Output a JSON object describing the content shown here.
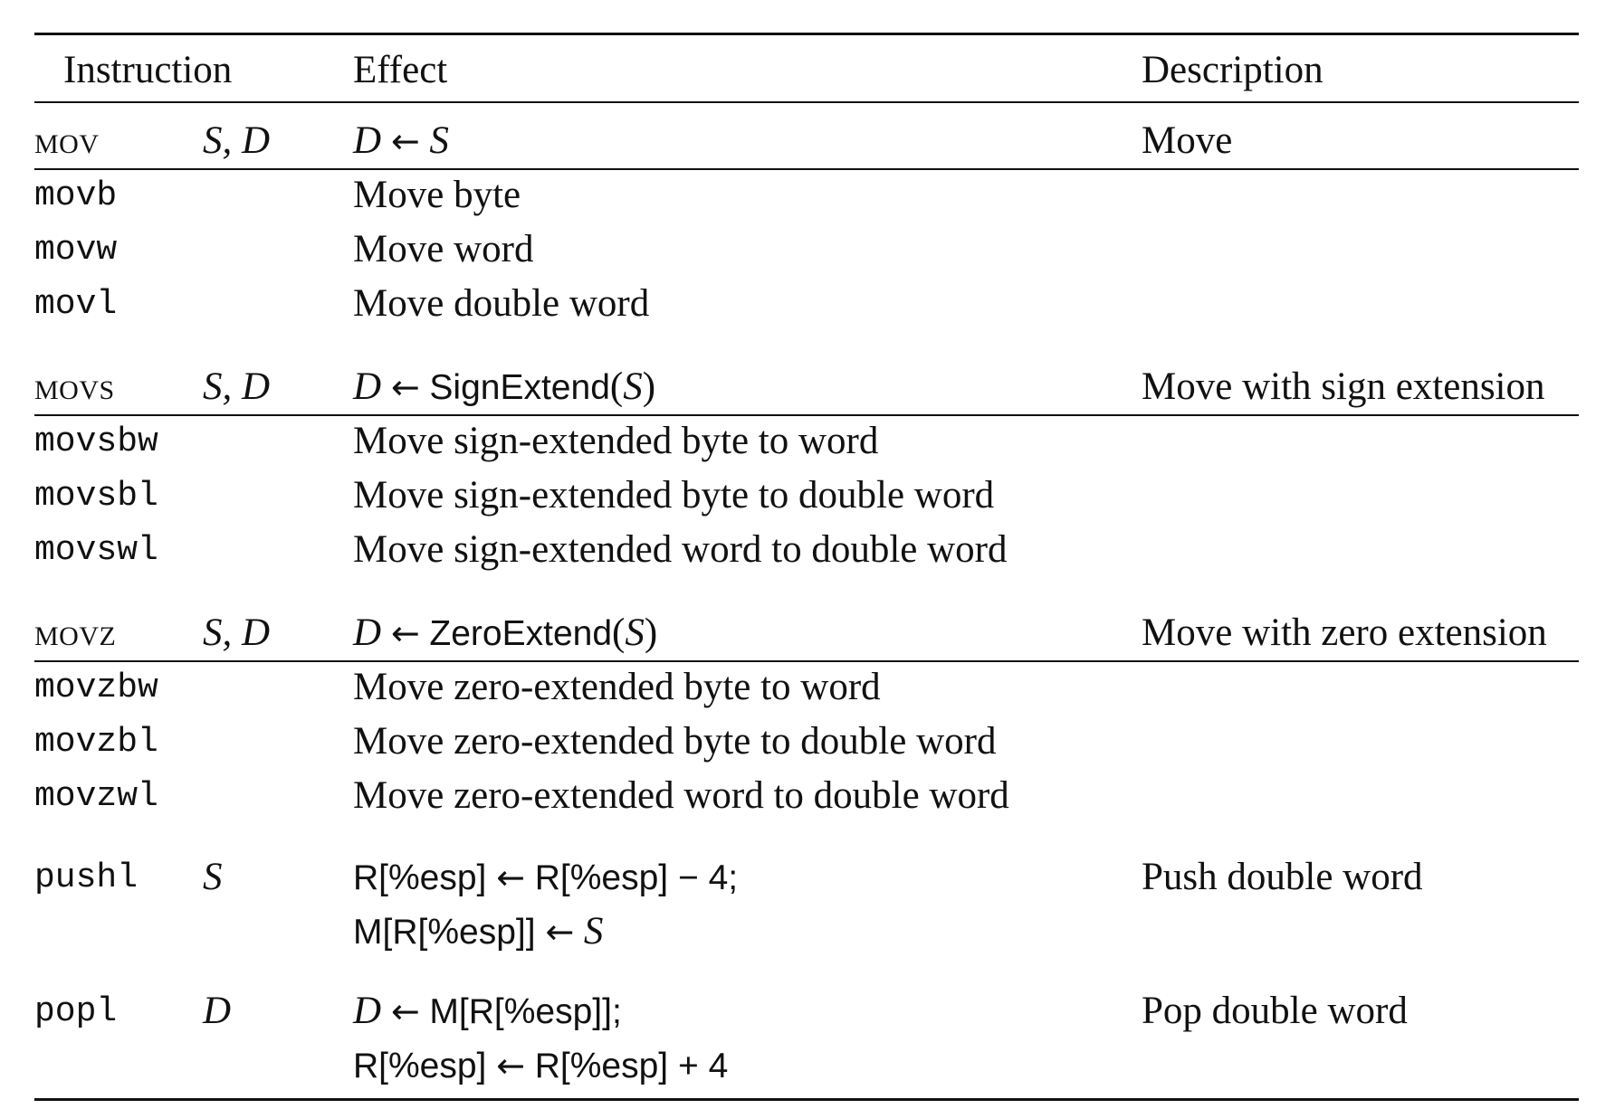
{
  "table": {
    "headers": {
      "instruction": "Instruction",
      "effect": "Effect",
      "description": "Description"
    },
    "groups": {
      "mov": {
        "name": "mov",
        "operands": "S, D",
        "effect_lhs": "D",
        "arrow": "←",
        "effect_rhs": "S",
        "description": "Move",
        "rows": [
          {
            "instr": "movb",
            "effect": "Move byte"
          },
          {
            "instr": "movw",
            "effect": "Move word"
          },
          {
            "instr": "movl",
            "effect": "Move double word"
          }
        ]
      },
      "movs": {
        "name": "movs",
        "operands": "S, D",
        "effect_lhs": "D",
        "arrow": "←",
        "func": "SignExtend",
        "paren_open": "(",
        "arg": "S",
        "paren_close": ")",
        "description": "Move with sign extension",
        "rows": [
          {
            "instr": "movsbw",
            "effect": "Move sign-extended byte to word"
          },
          {
            "instr": "movsbl",
            "effect": "Move sign-extended byte to double word"
          },
          {
            "instr": "movswl",
            "effect": "Move sign-extended word to double word"
          }
        ]
      },
      "movz": {
        "name": "movz",
        "operands": "S, D",
        "effect_lhs": "D",
        "arrow": "←",
        "func": "ZeroExtend",
        "paren_open": "(",
        "arg": "S",
        "paren_close": ")",
        "description": "Move with zero extension",
        "rows": [
          {
            "instr": "movzbw",
            "effect": "Move zero-extended byte to word"
          },
          {
            "instr": "movzbl",
            "effect": "Move zero-extended byte to double word"
          },
          {
            "instr": "movzwl",
            "effect": "Move zero-extended word to double word"
          }
        ]
      },
      "pushl": {
        "instr": "pushl",
        "operands": "S",
        "line1_lhs": "R[%esp]",
        "arrow": "←",
        "line1_rhs": "R[%esp] − 4;",
        "line2_lhs": "M[R[%esp]]",
        "line2_rhs": "S",
        "description": "Push double word"
      },
      "popl": {
        "instr": "popl",
        "operands": "D",
        "line1_lhs": "D",
        "arrow": "←",
        "line1_rhs": "M[R[%esp]];",
        "line2_lhs": "R[%esp]",
        "line2_rhs": "R[%esp] + 4",
        "description": "Pop double word"
      }
    }
  }
}
